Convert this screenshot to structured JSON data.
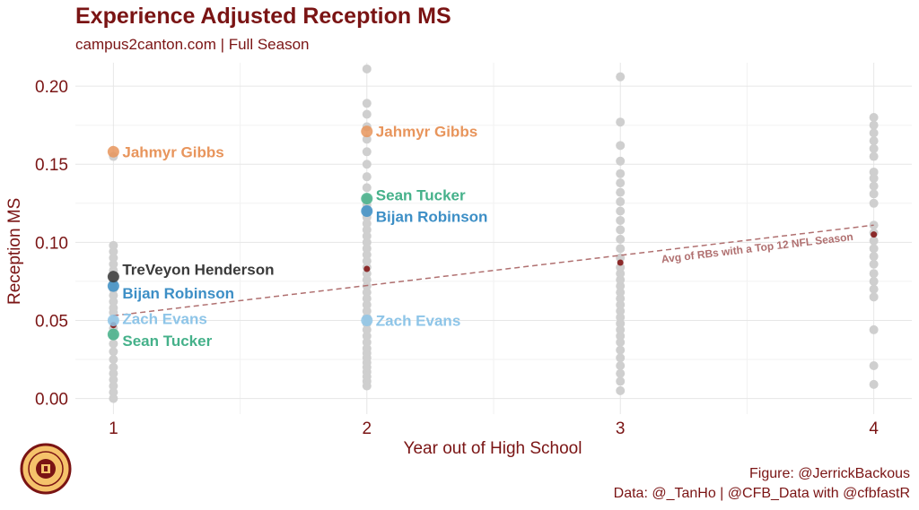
{
  "header": {
    "title": "Experience Adjusted Reception MS",
    "subtitle": "campus2canton.com | Full Season"
  },
  "footer": {
    "figure_credit": "Figure: @JerrickBackous",
    "data_credit": "Data: @_TanHo | @CFB_Data with @cfbfastR"
  },
  "logo": {
    "icon": "campus2canton-logo-icon",
    "color": "#7a1414",
    "fill": "#f5c26b"
  },
  "chart_data": {
    "type": "scatter",
    "title": "Experience Adjusted Reception MS",
    "subtitle": "campus2canton.com | Full Season",
    "xlabel": "Year out of High School",
    "ylabel": "Reception MS",
    "xlim": [
      0.85,
      4.15
    ],
    "ylim": [
      -0.01,
      0.215
    ],
    "x_ticks": [
      1,
      2,
      3,
      4
    ],
    "y_ticks": [
      0.0,
      0.05,
      0.1,
      0.15,
      0.2
    ],
    "y_tick_labels": [
      "0.00",
      "0.05",
      "0.10",
      "0.15",
      "0.20"
    ],
    "grid": true,
    "background_points": [
      {
        "x": 1,
        "values": [
          0.0,
          0.004,
          0.008,
          0.012,
          0.016,
          0.02,
          0.025,
          0.03,
          0.035,
          0.04,
          0.045,
          0.05,
          0.055,
          0.058,
          0.062,
          0.066,
          0.07,
          0.074,
          0.078,
          0.082,
          0.086,
          0.09,
          0.094,
          0.098,
          0.155
        ]
      },
      {
        "x": 2,
        "values": [
          0.008,
          0.011,
          0.014,
          0.017,
          0.02,
          0.023,
          0.026,
          0.029,
          0.032,
          0.036,
          0.04,
          0.044,
          0.048,
          0.052,
          0.056,
          0.06,
          0.064,
          0.068,
          0.072,
          0.076,
          0.08,
          0.084,
          0.088,
          0.092,
          0.096,
          0.1,
          0.104,
          0.108,
          0.112,
          0.116,
          0.12,
          0.124,
          0.128,
          0.135,
          0.142,
          0.15,
          0.158,
          0.166,
          0.174,
          0.182,
          0.189,
          0.211
        ]
      },
      {
        "x": 3,
        "values": [
          0.005,
          0.011,
          0.016,
          0.021,
          0.026,
          0.031,
          0.036,
          0.04,
          0.044,
          0.048,
          0.052,
          0.056,
          0.06,
          0.064,
          0.068,
          0.072,
          0.076,
          0.08,
          0.084,
          0.09,
          0.096,
          0.102,
          0.108,
          0.114,
          0.12,
          0.126,
          0.132,
          0.138,
          0.144,
          0.152,
          0.162,
          0.177,
          0.206
        ]
      },
      {
        "x": 4,
        "values": [
          0.009,
          0.021,
          0.044,
          0.065,
          0.07,
          0.075,
          0.08,
          0.086,
          0.091,
          0.096,
          0.101,
          0.106,
          0.111,
          0.125,
          0.131,
          0.136,
          0.141,
          0.145,
          0.155,
          0.16,
          0.165,
          0.17,
          0.175,
          0.18
        ]
      }
    ],
    "series": [
      {
        "name": "Jahmyr Gibbs",
        "color": "#e8955c",
        "points": [
          {
            "x": 1,
            "y": 0.158
          },
          {
            "x": 2,
            "y": 0.171
          }
        ]
      },
      {
        "name": "Sean Tucker",
        "color": "#45b18a",
        "points": [
          {
            "x": 1,
            "y": 0.041
          },
          {
            "x": 2,
            "y": 0.128
          }
        ]
      },
      {
        "name": "Bijan Robinson",
        "color": "#3d8fc6",
        "points": [
          {
            "x": 1,
            "y": 0.072
          },
          {
            "x": 2,
            "y": 0.12
          }
        ]
      },
      {
        "name": "Zach Evans",
        "color": "#8ec5e8",
        "points": [
          {
            "x": 1,
            "y": 0.05
          },
          {
            "x": 2,
            "y": 0.05
          }
        ]
      },
      {
        "name": "TreVeyon Henderson",
        "color": "#3a3a3a",
        "points": [
          {
            "x": 1,
            "y": 0.078
          }
        ]
      }
    ],
    "average_points": [
      {
        "x": 1,
        "y": 0.047
      },
      {
        "x": 2,
        "y": 0.083
      },
      {
        "x": 3,
        "y": 0.087
      },
      {
        "x": 4,
        "y": 0.105
      }
    ],
    "trend_line": {
      "label": "Avg of RBs with a Top 12 NFL Season",
      "from": {
        "x": 1,
        "y": 0.053
      },
      "to": {
        "x": 4,
        "y": 0.111
      },
      "color": "#b07070"
    },
    "colors": {
      "background_point": "#cfcfcf",
      "average_point": "#8b2a2a",
      "text": "#7a1414",
      "grid_major": "#e6e6e6",
      "grid_minor": "#f2f2f2"
    }
  }
}
